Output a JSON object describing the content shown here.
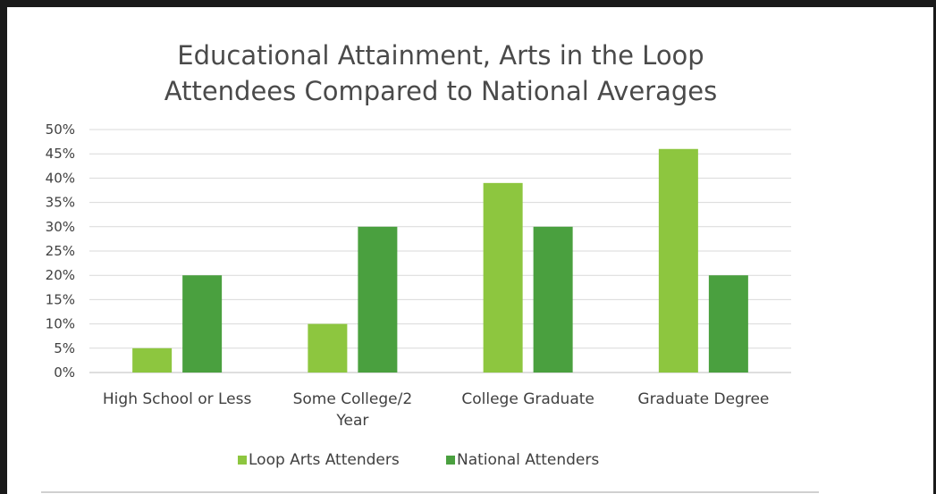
{
  "chart_data": {
    "type": "bar",
    "title": "Educational Attainment, Arts in the Loop Attendees Compared to National Averages",
    "title_lines": [
      "Educational Attainment, Arts in the Loop",
      "Attendees Compared to National Averages"
    ],
    "categories": [
      "High School or Less",
      "Some College/2 Year",
      "College Graduate",
      "Graduate Degree"
    ],
    "category_lines": [
      [
        "High School or Less"
      ],
      [
        "Some College/2",
        "Year"
      ],
      [
        "College Graduate"
      ],
      [
        "Graduate Degree"
      ]
    ],
    "series": [
      {
        "name": "Loop Arts Attenders",
        "values": [
          5,
          10,
          39,
          46
        ],
        "color": "#8dc63f"
      },
      {
        "name": "National Attenders",
        "values": [
          20,
          30,
          30,
          20
        ],
        "color": "#4aa03f"
      }
    ],
    "ylim": [
      0,
      50
    ],
    "yticks": [
      "0%",
      "5%",
      "10%",
      "15%",
      "20%",
      "25%",
      "30%",
      "35%",
      "40%",
      "45%",
      "50%"
    ],
    "ytick_values": [
      0,
      5,
      10,
      15,
      20,
      25,
      30,
      35,
      40,
      45,
      50
    ],
    "ylabel": "",
    "xlabel": "",
    "grid": true,
    "legend_position": "bottom"
  }
}
